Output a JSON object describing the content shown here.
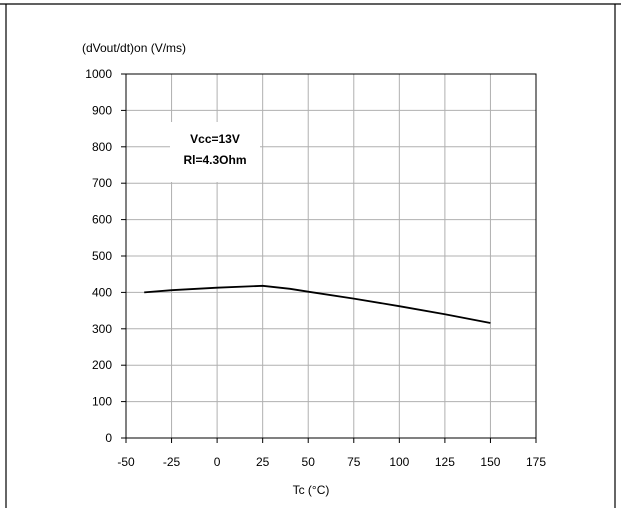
{
  "chart_data": {
    "type": "line",
    "title": "",
    "ylabel": "(dVout/dt)on (V/ms)",
    "xlabel": "Tc (°C)",
    "xlim": [
      -50,
      175
    ],
    "ylim": [
      0,
      1000
    ],
    "x_ticks": [
      -50,
      -25,
      0,
      25,
      50,
      75,
      100,
      125,
      150,
      175
    ],
    "y_ticks": [
      0,
      100,
      200,
      300,
      400,
      500,
      600,
      700,
      800,
      900,
      1000
    ],
    "grid": true,
    "legend": "none",
    "annotation": [
      "Vcc=13V",
      "Rl=4.3Ohm"
    ],
    "series": [
      {
        "x": [
          -40,
          -25,
          0,
          25,
          40,
          50,
          75,
          100,
          125,
          150
        ],
        "values": [
          400,
          406,
          413,
          418,
          410,
          402,
          383,
          362,
          340,
          316
        ],
        "color": "#000000"
      }
    ]
  }
}
